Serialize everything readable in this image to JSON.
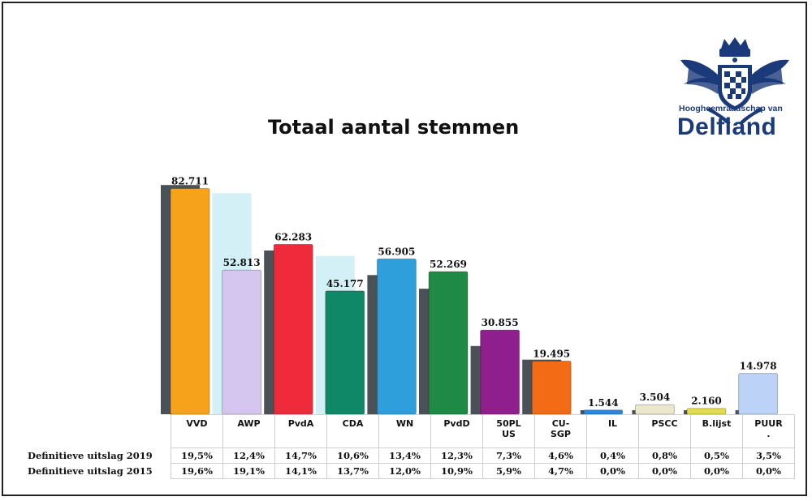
{
  "chart_data": {
    "type": "bar",
    "title": "Totaal aantal stemmen",
    "categories": [
      "VVD",
      "AWP",
      "PvdA",
      "CDA",
      "WN",
      "PvdD",
      "50PL US",
      "CU-SGP",
      "IL",
      "PSCC",
      "B.lijst",
      "PUUR ."
    ],
    "category_lines": [
      [
        "VVD"
      ],
      [
        "AWP"
      ],
      [
        "PvdA"
      ],
      [
        "CDA"
      ],
      [
        "WN"
      ],
      [
        "PvdD"
      ],
      [
        "50PL",
        "US"
      ],
      [
        "CU-",
        "SGP"
      ],
      [
        "IL"
      ],
      [
        "PSCC"
      ],
      [
        "B.lijst"
      ],
      [
        "PUUR",
        "."
      ]
    ],
    "series": [
      {
        "name": "Definitieve uitslag 2019",
        "values": [
          82711,
          52813,
          62283,
          45177,
          56905,
          52269,
          30855,
          19495,
          1544,
          3504,
          2160,
          14978
        ],
        "labels": [
          "82.711",
          "52.813",
          "62.283",
          "45.177",
          "56.905",
          "52.269",
          "30.855",
          "19.495",
          "1.544",
          "3.504",
          "2.160",
          "14.978"
        ],
        "colors": [
          "#f7a21b",
          "#d4c6ee",
          "#ef2b3b",
          "#0e8866",
          "#2f9fdb",
          "#1e8a45",
          "#8e1f8c",
          "#f36b14",
          "#2e86d8",
          "#ece6cc",
          "#e0dc4e",
          "#bcd2f7"
        ]
      },
      {
        "name": "Definitieve uitslag 2015",
        "values": [
          84000,
          81000,
          60000,
          58000,
          51000,
          46000,
          25000,
          20000,
          0,
          0,
          0,
          0
        ],
        "colors": [
          "#4a5258",
          "#d2f0f5",
          "#4a5258",
          "#d2f0f5",
          "#4a5258",
          "#4a5258",
          "#4a5258",
          "#4a5258",
          "#4a5258",
          "#4a5258",
          "#4a5258",
          "#4a5258"
        ]
      }
    ],
    "ylim": [
      0,
      90000
    ],
    "grid": false,
    "legend": "none"
  },
  "table": {
    "rows": [
      {
        "label": "Definitieve uitslag 2019",
        "values": [
          "19,5%",
          "12,4%",
          "14,7%",
          "10,6%",
          "13,4%",
          "12,3%",
          "7,3%",
          "4,6%",
          "0,4%",
          "0,8%",
          "0,5%",
          "3,5%"
        ]
      },
      {
        "label": "Definitieve uitslag 2015",
        "values": [
          "19,6%",
          "19,1%",
          "14,1%",
          "13,7%",
          "12,0%",
          "10,9%",
          "5,9%",
          "4,7%",
          "0,0%",
          "0,0%",
          "0,0%",
          "0,0%"
        ]
      }
    ]
  },
  "logo": {
    "subtitle": "Hoogheemraadschap van",
    "name": "Delfland",
    "color": "#1b3a7a"
  }
}
